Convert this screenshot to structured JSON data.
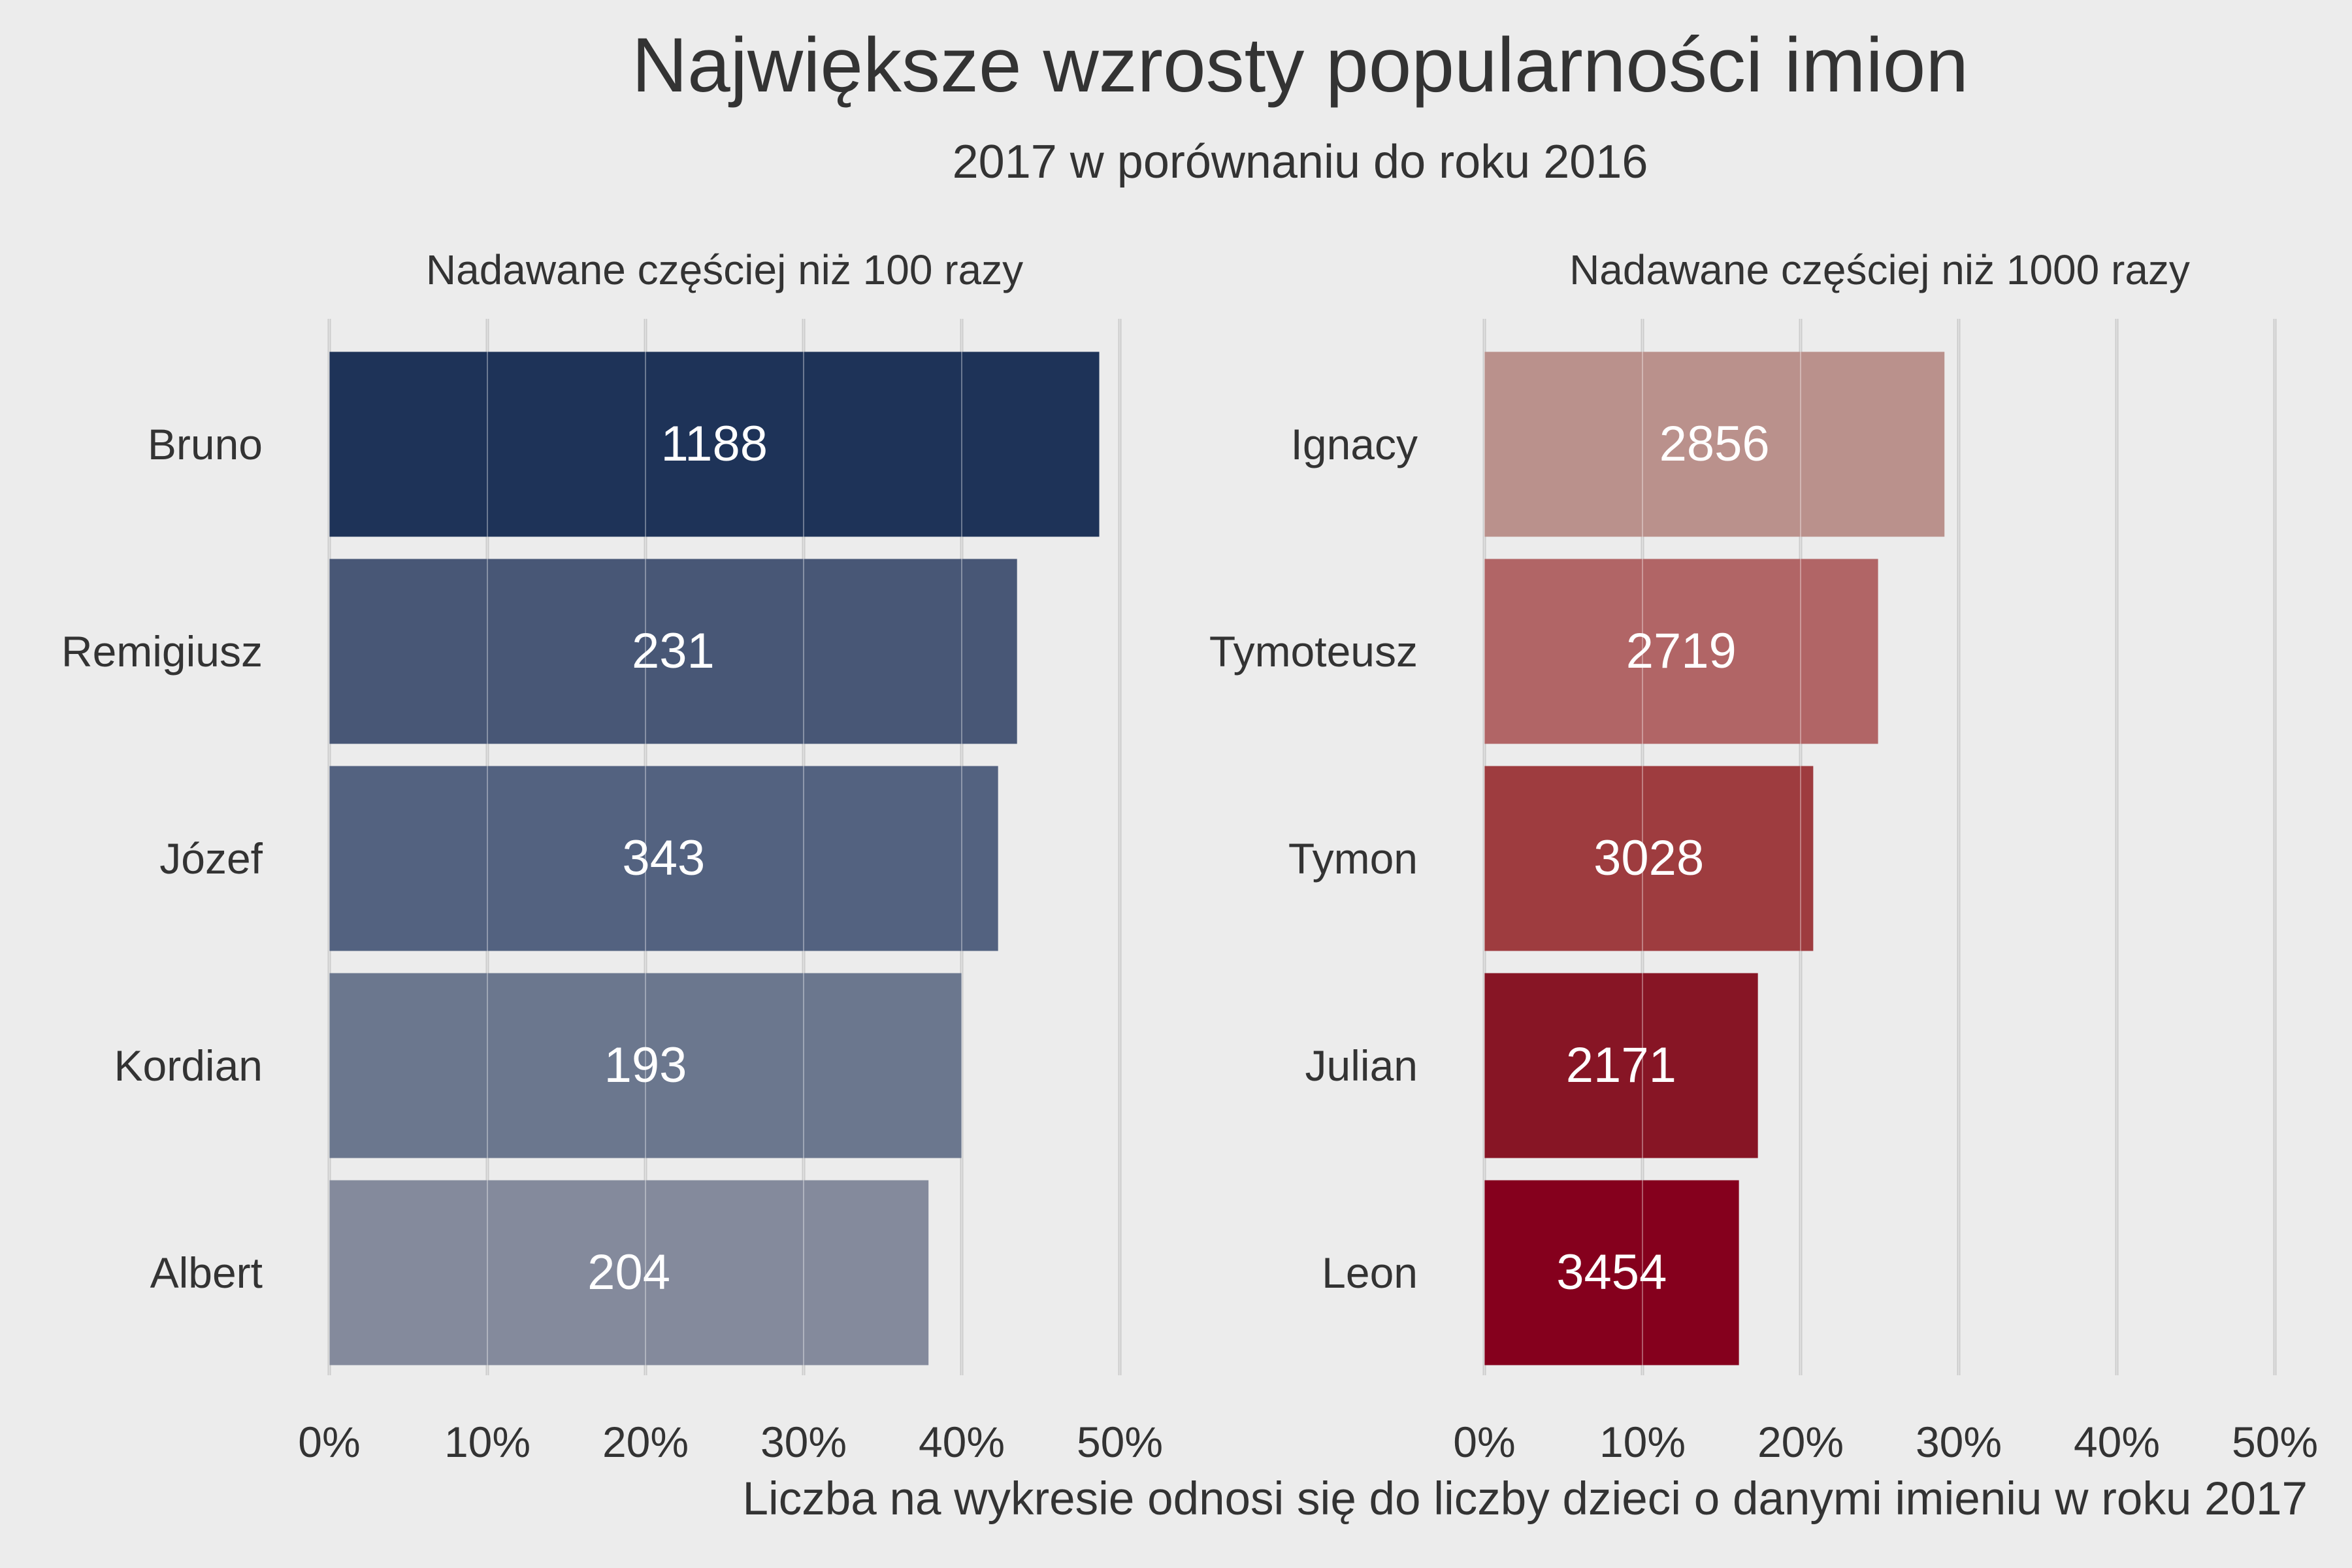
{
  "title": "Największe wzrosty popularności imion",
  "subtitle": "2017 w porównaniu do roku 2016",
  "caption": "Liczba na wykresie odnosi się do liczby dzieci o danymi imieniu w roku 2017",
  "chart_data": [
    {
      "type": "bar",
      "orientation": "horizontal",
      "title": "Nadawane częściej niż 100 razy",
      "categories": [
        "Bruno",
        "Remigiusz",
        "Józef",
        "Kordian",
        "Albert"
      ],
      "values": [
        48.7,
        43.5,
        42.3,
        40.0,
        37.9
      ],
      "bar_labels": [
        "1188",
        "231",
        "343",
        "193",
        "204"
      ],
      "colors": [
        "#1e3358",
        "#485776",
        "#536280",
        "#6b778e",
        "#848a9c"
      ],
      "xlim": [
        0,
        50
      ],
      "xticks": [
        "0%",
        "10%",
        "20%",
        "30%",
        "40%",
        "50%"
      ],
      "grid": true
    },
    {
      "type": "bar",
      "orientation": "horizontal",
      "title": "Nadawane częściej niż 1000 razy",
      "categories": [
        "Ignacy",
        "Tymoteusz",
        "Tymon",
        "Julian",
        "Leon"
      ],
      "values": [
        29.1,
        24.9,
        20.8,
        17.3,
        16.1
      ],
      "bar_labels": [
        "2856",
        "2719",
        "3028",
        "2171",
        "3454"
      ],
      "colors": [
        "#ba918c",
        "#b16566",
        "#9e3c3f",
        "#871525",
        "#85001d"
      ],
      "xlim": [
        0,
        50
      ],
      "xticks": [
        "0%",
        "10%",
        "20%",
        "30%",
        "40%",
        "50%"
      ],
      "grid": true
    }
  ]
}
